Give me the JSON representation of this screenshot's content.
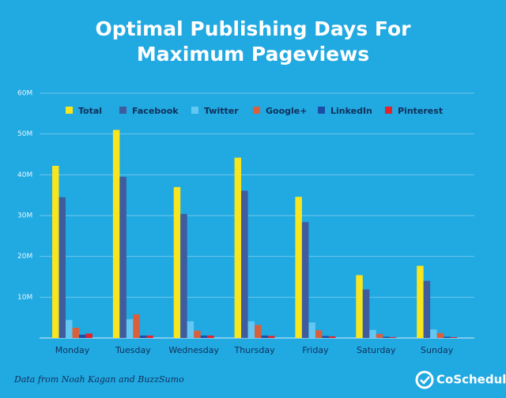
{
  "chart_data": {
    "type": "bar",
    "title": [
      "Optimal Publishing Days For",
      "Maximum Pageviews"
    ],
    "categories": [
      "Monday",
      "Tuesday",
      "Wednesday",
      "Thursday",
      "Friday",
      "Saturday",
      "Sunday"
    ],
    "series": [
      {
        "name": "Total",
        "color": "#f7e51f",
        "values": [
          42.2,
          51,
          37,
          44.2,
          34.6,
          15.4,
          17.7
        ]
      },
      {
        "name": "Facebook",
        "color": "#3f5c9f",
        "values": [
          34.5,
          39.5,
          30.4,
          36.1,
          28.4,
          11.9,
          14
        ]
      },
      {
        "name": "Twitter",
        "color": "#62c7f2",
        "values": [
          4.4,
          4.6,
          4.1,
          4.1,
          3.8,
          2,
          2.1
        ]
      },
      {
        "name": "Google+",
        "color": "#d8603c",
        "values": [
          2.5,
          5.8,
          1.8,
          3.2,
          1.9,
          1,
          1.2
        ]
      },
      {
        "name": "LinkedIn",
        "color": "#1b4ea6",
        "values": [
          0.8,
          0.6,
          0.6,
          0.6,
          0.5,
          0.3,
          0.3
        ]
      },
      {
        "name": "Pinterest",
        "color": "#e3242b",
        "values": [
          1.1,
          0.6,
          0.6,
          0.5,
          0.4,
          0.2,
          0.2
        ]
      }
    ],
    "ylim": [
      0,
      60
    ],
    "yticks": [
      {
        "value": 10,
        "label": "10M"
      },
      {
        "value": 20,
        "label": "20M"
      },
      {
        "value": 30,
        "label": "30M"
      },
      {
        "value": 40,
        "label": "40M"
      },
      {
        "value": 50,
        "label": "50M"
      },
      {
        "value": 60,
        "label": "60M"
      }
    ],
    "grid": true,
    "legend": "top",
    "source": "Data from Noah Kagan and BuzzSumo",
    "brand": "CoSchedule"
  }
}
